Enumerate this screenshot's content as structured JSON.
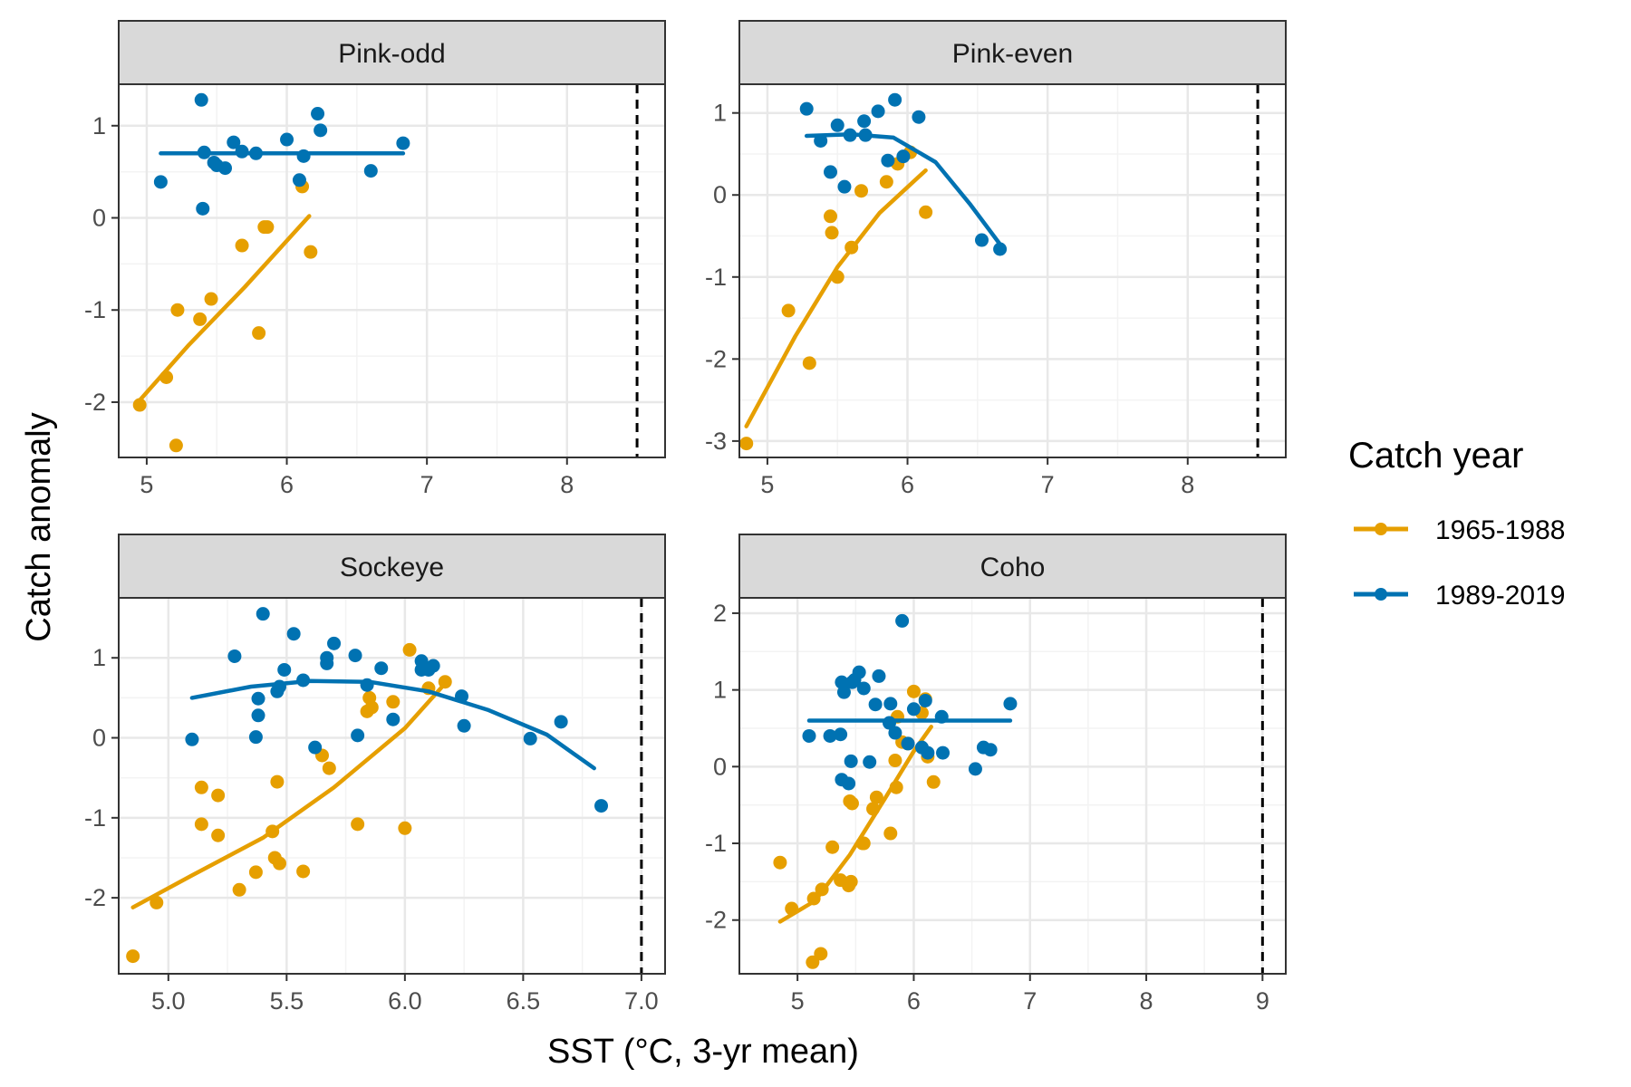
{
  "axis": {
    "xlabel": "SST (°C, 3-yr mean)",
    "ylabel": "Catch anomaly"
  },
  "legend": {
    "title": "Catch year",
    "items": [
      {
        "label": "1965-1988",
        "color": "#E69F00"
      },
      {
        "label": "1989-2019",
        "color": "#0072B2"
      }
    ]
  },
  "chart_data": [
    {
      "type": "scatter",
      "title": "Pink-odd",
      "xlim": [
        4.8,
        8.7
      ],
      "ylim": [
        -2.6,
        1.45
      ],
      "xticks": [
        5,
        6,
        7,
        8
      ],
      "xtick_labels": [
        "5",
        "6",
        "7",
        "8"
      ],
      "yticks": [
        -2,
        -1,
        0,
        1
      ],
      "ytick_labels": [
        "-2",
        "-1",
        "0",
        "1"
      ],
      "reference_line_x": 8.5,
      "series": [
        {
          "name": "1965-1988",
          "color": "#E69F00",
          "points": [
            [
              4.95,
              -2.03
            ],
            [
              5.14,
              -1.73
            ],
            [
              5.22,
              -1.0
            ],
            [
              5.21,
              -2.47
            ],
            [
              5.38,
              -1.1
            ],
            [
              5.46,
              -0.88
            ],
            [
              5.68,
              -0.3
            ],
            [
              5.8,
              -1.25
            ],
            [
              5.84,
              -0.1
            ],
            [
              5.86,
              -0.1
            ],
            [
              6.11,
              0.34
            ],
            [
              6.17,
              -0.37
            ]
          ],
          "fit": [
            [
              4.95,
              -1.98
            ],
            [
              5.3,
              -1.38
            ],
            [
              5.7,
              -0.75
            ],
            [
              6.16,
              0.02
            ]
          ]
        },
        {
          "name": "1989-2019",
          "color": "#0072B2",
          "points": [
            [
              5.1,
              0.39
            ],
            [
              5.39,
              1.28
            ],
            [
              5.4,
              0.1
            ],
            [
              5.41,
              0.71
            ],
            [
              5.48,
              0.6
            ],
            [
              5.5,
              0.57
            ],
            [
              5.56,
              0.54
            ],
            [
              5.62,
              0.82
            ],
            [
              5.68,
              0.72
            ],
            [
              5.78,
              0.7
            ],
            [
              6.0,
              0.85
            ],
            [
              6.09,
              0.41
            ],
            [
              6.12,
              0.67
            ],
            [
              6.22,
              1.13
            ],
            [
              6.24,
              0.95
            ],
            [
              6.6,
              0.51
            ],
            [
              6.83,
              0.81
            ]
          ],
          "fit": [
            [
              5.1,
              0.7
            ],
            [
              6.83,
              0.7
            ]
          ]
        }
      ]
    },
    {
      "type": "scatter",
      "title": "Pink-even",
      "xlim": [
        4.8,
        8.7
      ],
      "ylim": [
        -3.2,
        1.35
      ],
      "xticks": [
        5,
        6,
        7,
        8
      ],
      "xtick_labels": [
        "5",
        "6",
        "7",
        "8"
      ],
      "yticks": [
        -3,
        -2,
        -1,
        0,
        1
      ],
      "ytick_labels": [
        "-3",
        "-2",
        "-1",
        "0",
        "1"
      ],
      "reference_line_x": 8.5,
      "series": [
        {
          "name": "1965-1988",
          "color": "#E69F00",
          "points": [
            [
              4.85,
              -3.03
            ],
            [
              5.15,
              -1.41
            ],
            [
              5.3,
              -2.05
            ],
            [
              5.45,
              -0.26
            ],
            [
              5.46,
              -0.46
            ],
            [
              5.5,
              -1.0
            ],
            [
              5.6,
              -0.64
            ],
            [
              5.67,
              0.05
            ],
            [
              5.85,
              0.16
            ],
            [
              5.93,
              0.38
            ],
            [
              6.02,
              0.52
            ],
            [
              6.13,
              -0.21
            ]
          ],
          "fit": [
            [
              4.85,
              -2.82
            ],
            [
              5.2,
              -1.72
            ],
            [
              5.5,
              -0.88
            ],
            [
              5.8,
              -0.22
            ],
            [
              6.13,
              0.3
            ]
          ]
        },
        {
          "name": "1989-2019",
          "color": "#0072B2",
          "points": [
            [
              5.28,
              1.05
            ],
            [
              5.38,
              0.66
            ],
            [
              5.45,
              0.28
            ],
            [
              5.5,
              0.85
            ],
            [
              5.55,
              0.1
            ],
            [
              5.59,
              0.73
            ],
            [
              5.69,
              0.9
            ],
            [
              5.7,
              0.73
            ],
            [
              5.79,
              1.02
            ],
            [
              5.86,
              0.42
            ],
            [
              5.91,
              1.16
            ],
            [
              5.97,
              0.47
            ],
            [
              6.08,
              0.95
            ],
            [
              6.53,
              -0.55
            ],
            [
              6.66,
              -0.66
            ]
          ],
          "fit": [
            [
              5.28,
              0.72
            ],
            [
              5.6,
              0.74
            ],
            [
              5.9,
              0.7
            ],
            [
              6.2,
              0.4
            ],
            [
              6.45,
              -0.12
            ],
            [
              6.66,
              -0.6
            ]
          ]
        }
      ]
    },
    {
      "type": "scatter",
      "title": "Sockeye",
      "xlim": [
        4.79,
        7.1
      ],
      "ylim": [
        -2.95,
        1.75
      ],
      "xticks": [
        5.0,
        5.5,
        6.0,
        6.5,
        7.0
      ],
      "xtick_labels": [
        "5.0",
        "5.5",
        "6.0",
        "6.5",
        "7.0"
      ],
      "yticks": [
        -2,
        -1,
        0,
        1
      ],
      "ytick_labels": [
        "-2",
        "-1",
        "0",
        "1"
      ],
      "reference_line_x": 7.0,
      "series": [
        {
          "name": "1965-1988",
          "color": "#E69F00",
          "points": [
            [
              4.85,
              -2.73
            ],
            [
              4.95,
              -2.06
            ],
            [
              5.14,
              -1.08
            ],
            [
              5.14,
              -0.62
            ],
            [
              5.21,
              -0.72
            ],
            [
              5.21,
              -1.22
            ],
            [
              5.3,
              -1.9
            ],
            [
              5.37,
              -1.68
            ],
            [
              5.44,
              -1.17
            ],
            [
              5.46,
              -0.55
            ],
            [
              5.45,
              -1.5
            ],
            [
              5.47,
              -1.57
            ],
            [
              5.57,
              -1.67
            ],
            [
              5.65,
              -0.22
            ],
            [
              5.68,
              -0.38
            ],
            [
              5.8,
              -1.08
            ],
            [
              5.84,
              0.33
            ],
            [
              5.85,
              0.5
            ],
            [
              5.86,
              0.38
            ],
            [
              5.95,
              0.45
            ],
            [
              6.0,
              -1.13
            ],
            [
              6.02,
              1.1
            ],
            [
              6.1,
              0.62
            ],
            [
              6.17,
              0.7
            ]
          ],
          "fit": [
            [
              4.85,
              -2.12
            ],
            [
              5.1,
              -1.72
            ],
            [
              5.4,
              -1.25
            ],
            [
              5.7,
              -0.62
            ],
            [
              6.0,
              0.12
            ],
            [
              6.17,
              0.68
            ]
          ]
        },
        {
          "name": "1989-2019",
          "color": "#0072B2",
          "points": [
            [
              5.1,
              -0.02
            ],
            [
              5.28,
              1.02
            ],
            [
              5.37,
              0.01
            ],
            [
              5.38,
              0.49
            ],
            [
              5.38,
              0.28
            ],
            [
              5.4,
              1.55
            ],
            [
              5.46,
              0.58
            ],
            [
              5.47,
              0.64
            ],
            [
              5.49,
              0.85
            ],
            [
              5.53,
              1.3
            ],
            [
              5.57,
              0.72
            ],
            [
              5.62,
              -0.12
            ],
            [
              5.67,
              0.93
            ],
            [
              5.67,
              1.0
            ],
            [
              5.7,
              1.18
            ],
            [
              5.79,
              1.03
            ],
            [
              5.8,
              0.03
            ],
            [
              5.84,
              0.66
            ],
            [
              5.9,
              0.87
            ],
            [
              5.95,
              0.23
            ],
            [
              6.07,
              0.96
            ],
            [
              6.07,
              0.85
            ],
            [
              6.1,
              0.85
            ],
            [
              6.12,
              0.9
            ],
            [
              6.24,
              0.52
            ],
            [
              6.25,
              0.15
            ],
            [
              6.53,
              -0.01
            ],
            [
              6.66,
              0.2
            ],
            [
              6.83,
              -0.85
            ]
          ],
          "fit": [
            [
              5.1,
              0.5
            ],
            [
              5.35,
              0.64
            ],
            [
              5.6,
              0.71
            ],
            [
              5.85,
              0.7
            ],
            [
              6.1,
              0.58
            ],
            [
              6.35,
              0.35
            ],
            [
              6.6,
              0.04
            ],
            [
              6.8,
              -0.38
            ]
          ]
        }
      ]
    },
    {
      "type": "scatter",
      "title": "Coho",
      "xlim": [
        4.5,
        9.2
      ],
      "ylim": [
        -2.7,
        2.2
      ],
      "xticks": [
        5,
        6,
        7,
        8,
        9
      ],
      "xtick_labels": [
        "5",
        "6",
        "7",
        "8",
        "9"
      ],
      "yticks": [
        -2,
        -1,
        0,
        1,
        2
      ],
      "ytick_labels": [
        "-2",
        "-1",
        "0",
        "1",
        "2"
      ],
      "reference_line_x": 9.0,
      "series": [
        {
          "name": "1965-1988",
          "color": "#E69F00",
          "points": [
            [
              4.85,
              -1.25
            ],
            [
              4.95,
              -1.85
            ],
            [
              5.13,
              -2.55
            ],
            [
              5.14,
              -1.72
            ],
            [
              5.2,
              -2.44
            ],
            [
              5.21,
              -1.6
            ],
            [
              5.3,
              -1.05
            ],
            [
              5.37,
              -1.48
            ],
            [
              5.44,
              -1.55
            ],
            [
              5.45,
              -0.45
            ],
            [
              5.46,
              -1.5
            ],
            [
              5.47,
              -0.48
            ],
            [
              5.56,
              -1.0
            ],
            [
              5.57,
              -1.0
            ],
            [
              5.65,
              -0.55
            ],
            [
              5.68,
              -0.4
            ],
            [
              5.8,
              -0.87
            ],
            [
              5.84,
              0.08
            ],
            [
              5.85,
              -0.27
            ],
            [
              5.86,
              0.65
            ],
            [
              5.9,
              0.32
            ],
            [
              5.95,
              0.3
            ],
            [
              6.0,
              0.98
            ],
            [
              6.07,
              0.7
            ],
            [
              6.1,
              0.88
            ],
            [
              6.12,
              0.13
            ],
            [
              6.17,
              -0.2
            ]
          ],
          "fit": [
            [
              4.85,
              -2.02
            ],
            [
              5.15,
              -1.75
            ],
            [
              5.45,
              -1.15
            ],
            [
              5.75,
              -0.42
            ],
            [
              6.0,
              0.2
            ],
            [
              6.15,
              0.52
            ]
          ]
        },
        {
          "name": "1989-2019",
          "color": "#0072B2",
          "points": [
            [
              5.1,
              0.4
            ],
            [
              5.28,
              0.4
            ],
            [
              5.37,
              0.42
            ],
            [
              5.38,
              1.1
            ],
            [
              5.38,
              -0.17
            ],
            [
              5.4,
              0.97
            ],
            [
              5.44,
              -0.22
            ],
            [
              5.46,
              0.07
            ],
            [
              5.47,
              1.1
            ],
            [
              5.49,
              1.13
            ],
            [
              5.53,
              1.23
            ],
            [
              5.57,
              1.02
            ],
            [
              5.62,
              0.06
            ],
            [
              5.67,
              0.81
            ],
            [
              5.7,
              1.18
            ],
            [
              5.79,
              0.57
            ],
            [
              5.8,
              0.82
            ],
            [
              5.84,
              0.44
            ],
            [
              5.9,
              1.9
            ],
            [
              5.95,
              0.3
            ],
            [
              6.0,
              0.75
            ],
            [
              6.07,
              0.25
            ],
            [
              6.1,
              0.86
            ],
            [
              6.12,
              0.18
            ],
            [
              6.24,
              0.65
            ],
            [
              6.25,
              0.18
            ],
            [
              6.53,
              -0.03
            ],
            [
              6.6,
              0.25
            ],
            [
              6.66,
              0.22
            ],
            [
              6.83,
              0.82
            ]
          ],
          "fit": [
            [
              5.1,
              0.6
            ],
            [
              6.83,
              0.6
            ]
          ]
        }
      ]
    }
  ]
}
